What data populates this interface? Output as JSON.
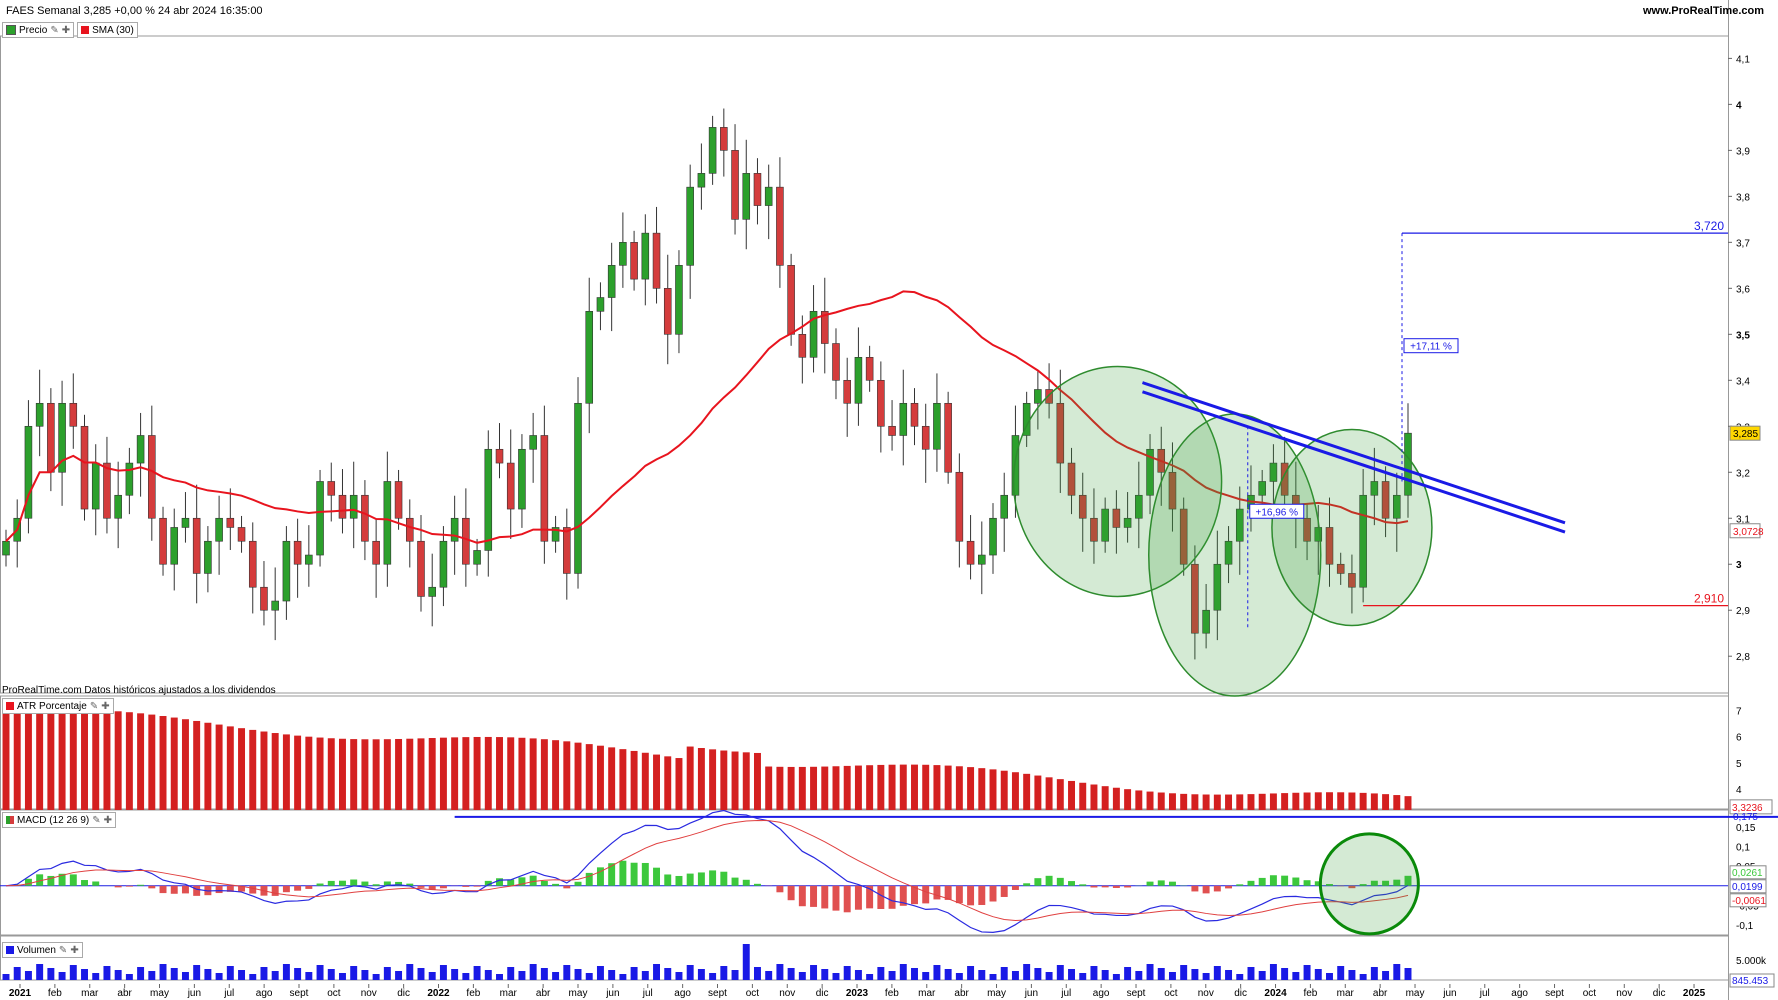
{
  "header": {
    "title": "FAES Semanal 3,285 +0,00 % 24 abr 2024 16:35:00",
    "brand": "www.ProRealTime.com",
    "footnote": "ProRealTime.com Datos históricos ajustados a los dividendos"
  },
  "legends": {
    "precio": "Precio",
    "sma": "SMA (30)",
    "atr": "ATR Porcentaje",
    "macd": "MACD (12 26 9)",
    "volumen": "Volumen"
  },
  "chart_data": [
    {
      "type": "candlestick",
      "title": "FAES Semanal",
      "ylim": [
        2.72,
        4.14
      ],
      "yticks": [
        "2,8",
        "2,9",
        "3",
        "3,1",
        "3,2",
        "3,3",
        "3,4",
        "3,5",
        "3,6",
        "3,7",
        "3,8",
        "3,9",
        "4",
        "4,1"
      ],
      "xticks": [
        "2021",
        "feb",
        "mar",
        "abr",
        "may",
        "jun",
        "jul",
        "ago",
        "sept",
        "oct",
        "nov",
        "dic",
        "2022",
        "feb",
        "mar",
        "abr",
        "may",
        "jun",
        "jul",
        "ago",
        "sept",
        "oct",
        "nov",
        "dic",
        "2023",
        "feb",
        "mar",
        "abr",
        "may",
        "jun",
        "jul",
        "ago",
        "sept",
        "oct",
        "nov",
        "dic",
        "2024",
        "feb",
        "mar",
        "abr",
        "may",
        "jun",
        "jul",
        "ago",
        "sept",
        "oct",
        "nov",
        "dic",
        "2025"
      ],
      "close_series": [
        3.05,
        3.1,
        3.3,
        3.35,
        3.2,
        3.35,
        3.3,
        3.12,
        3.22,
        3.1,
        3.15,
        3.22,
        3.28,
        3.1,
        3.0,
        3.08,
        3.1,
        2.98,
        3.05,
        3.1,
        3.08,
        3.05,
        2.95,
        2.9,
        2.92,
        3.05,
        3.0,
        3.02,
        3.18,
        3.15,
        3.1,
        3.15,
        3.05,
        3.0,
        3.18,
        3.1,
        3.05,
        2.93,
        2.95,
        3.05,
        3.1,
        3.0,
        3.03,
        3.25,
        3.22,
        3.12,
        3.25,
        3.28,
        3.05,
        3.08,
        2.98,
        3.35,
        3.55,
        3.58,
        3.65,
        3.7,
        3.62,
        3.72,
        3.6,
        3.5,
        3.65,
        3.82,
        3.85,
        3.95,
        3.9,
        3.75,
        3.85,
        3.78,
        3.82,
        3.65,
        3.5,
        3.45,
        3.55,
        3.48,
        3.4,
        3.35,
        3.45,
        3.4,
        3.3,
        3.28,
        3.35,
        3.3,
        3.25,
        3.35,
        3.2,
        3.05,
        3.0,
        3.02,
        3.1,
        3.15,
        3.28,
        3.35,
        3.38,
        3.35,
        3.22,
        3.15,
        3.1,
        3.05,
        3.12,
        3.08,
        3.1,
        3.15,
        3.25,
        3.2,
        3.12,
        3.0,
        2.85,
        2.9,
        3.0,
        3.05,
        3.12,
        3.15,
        3.18,
        3.22,
        3.15,
        3.1,
        3.05,
        3.08,
        3.0,
        2.98,
        2.95,
        3.15,
        3.18,
        3.1,
        3.15,
        3.285
      ],
      "sma30": {
        "name": "SMA (30)",
        "last": "3,0728"
      },
      "annotations": {
        "resistance_level": "3,720",
        "support_level": "2,910",
        "gain_1": "+16,96 %",
        "gain_2": "+17,11 %",
        "last_price": "3,285",
        "sma_last": "3,0728"
      },
      "colors": {
        "up": "#2ca02c",
        "down": "#d43c3c",
        "sma": "#e8141e",
        "trend": "#1a1ae6",
        "circle": "#2e8b2e"
      }
    },
    {
      "type": "bar",
      "title": "ATR Porcentaje",
      "yticks": [
        "4",
        "5",
        "6",
        "7"
      ],
      "last": "3,3236",
      "ylim": [
        3.2,
        7.4
      ]
    },
    {
      "type": "bar",
      "title": "MACD (12 26 9)",
      "yticks": [
        "0,15",
        "0,1",
        "0,05",
        "0",
        "-0,05",
        "-0,1"
      ],
      "labels": {
        "level": "0,175",
        "hist": "0,0261",
        "macd": "0,0199",
        "signal": "-0,0061"
      },
      "ylim": [
        -0.125,
        0.185
      ]
    },
    {
      "type": "bar",
      "title": "Volumen",
      "yticks": [
        "5.000k"
      ],
      "last": "845.453"
    }
  ]
}
